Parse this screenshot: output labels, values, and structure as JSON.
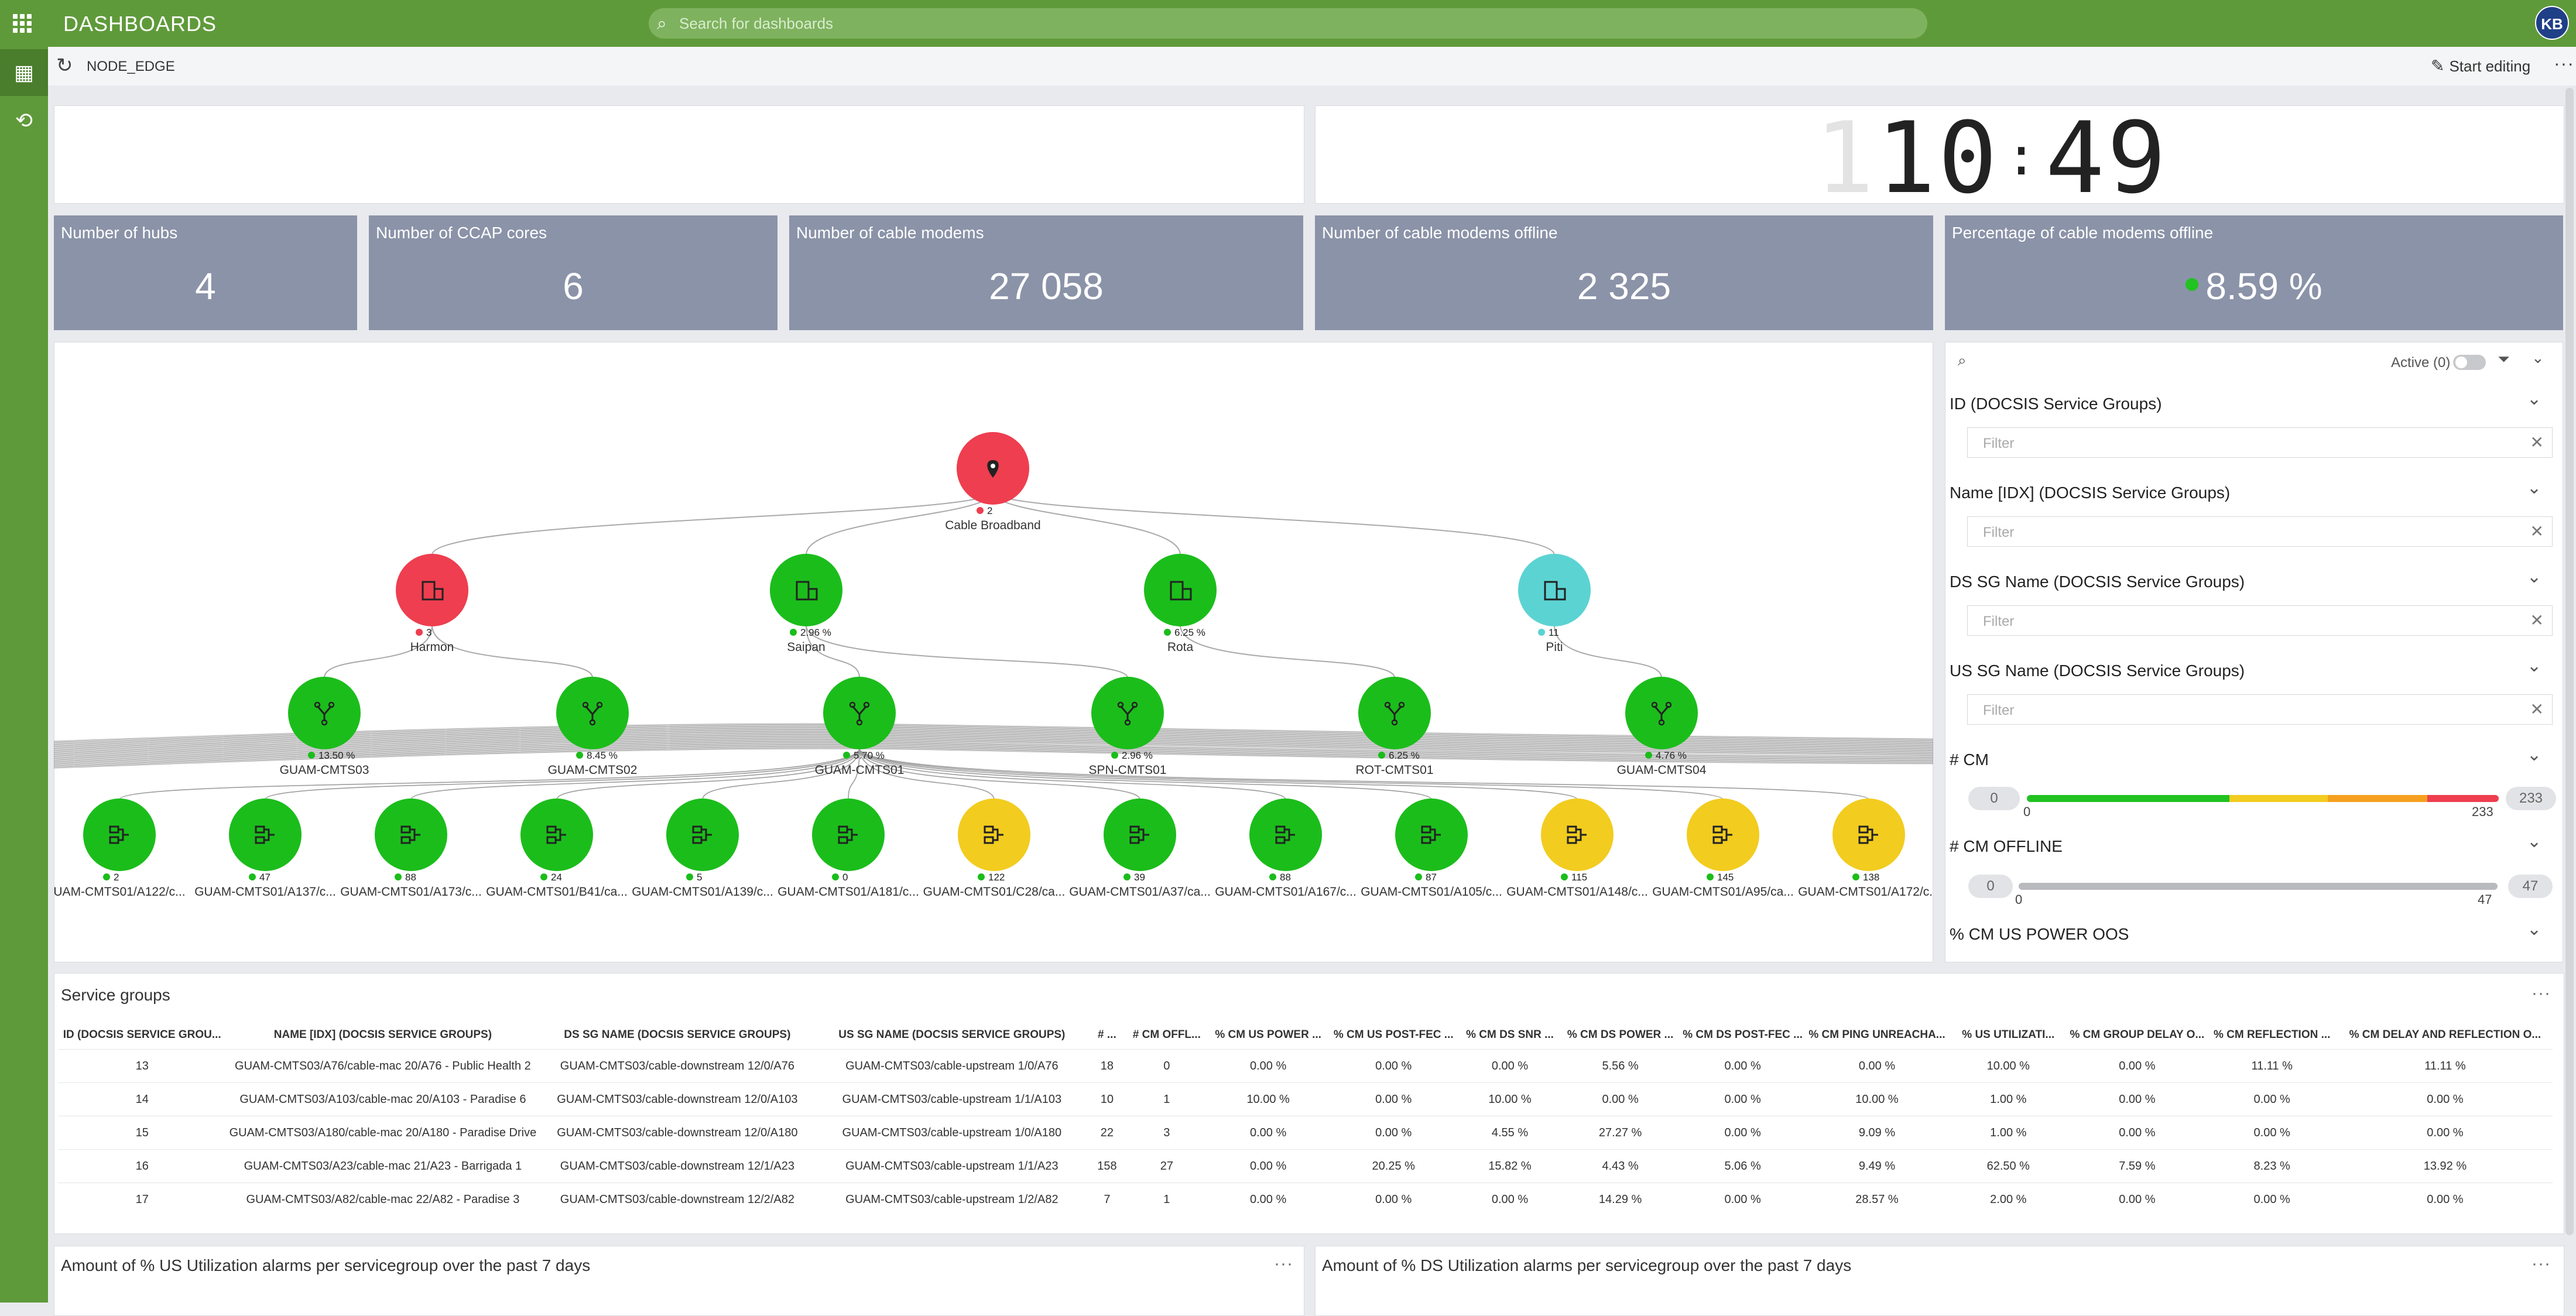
{
  "app": {
    "title": "DASHBOARDS",
    "search_placeholder": "Search for dashboards",
    "user_initials": "KB"
  },
  "breadcrumb": "NODE_EDGE",
  "toolbar": {
    "start_editing": "Start editing",
    "more": "···"
  },
  "clock": {
    "hours": "10",
    "separator": ":",
    "minutes": "49"
  },
  "kpis": [
    {
      "label": "Number of hubs",
      "value": "4"
    },
    {
      "label": "Number of CCAP cores",
      "value": "6"
    },
    {
      "label": "Number of cable modems",
      "value": "27 058"
    },
    {
      "label": "Number of cable modems offline",
      "value": "2 325"
    },
    {
      "label": "Percentage of cable modems offline",
      "value": "8.59 %"
    }
  ],
  "topology": {
    "root": {
      "label": "Cable Broadband",
      "count": "2",
      "color": "#ee3e4f",
      "icon": "location-pin-icon"
    },
    "hubs": [
      {
        "label": "Harmon",
        "stat": "3",
        "color": "#ee3e4f",
        "dot": "#ee3e4f"
      },
      {
        "label": "Saipan",
        "stat": "2.96 %",
        "color": "#1bbd1b",
        "dot": "#1bbd1b"
      },
      {
        "label": "Rota",
        "stat": "6.25 %",
        "color": "#1bbd1b",
        "dot": "#1bbd1b"
      },
      {
        "label": "Piti",
        "stat": "11",
        "color": "#5cd3d3",
        "dot": "#5cd3d3"
      }
    ],
    "ccaps": [
      {
        "label": "GUAM-CMTS03",
        "stat": "13.50 %"
      },
      {
        "label": "GUAM-CMTS02",
        "stat": "8.45 %"
      },
      {
        "label": "GUAM-CMTS01",
        "stat": "5.70 %"
      },
      {
        "label": "SPN-CMTS01",
        "stat": "2.96 %"
      },
      {
        "label": "ROT-CMTS01",
        "stat": "6.25 %"
      },
      {
        "label": "GUAM-CMTS04",
        "stat": "4.76 %"
      }
    ],
    "groups": [
      {
        "label": "UAM-CMTS01/A122/c...",
        "stat": "2",
        "color": "#1bbd1b"
      },
      {
        "label": "GUAM-CMTS01/A137/c...",
        "stat": "47",
        "color": "#1bbd1b"
      },
      {
        "label": "GUAM-CMTS01/A173/c...",
        "stat": "88",
        "color": "#1bbd1b"
      },
      {
        "label": "GUAM-CMTS01/B41/ca...",
        "stat": "24",
        "color": "#1bbd1b"
      },
      {
        "label": "GUAM-CMTS01/A139/c...",
        "stat": "5",
        "color": "#1bbd1b"
      },
      {
        "label": "GUAM-CMTS01/A181/c...",
        "stat": "0",
        "color": "#1bbd1b"
      },
      {
        "label": "GUAM-CMTS01/C28/ca...",
        "stat": "122",
        "color": "#f2cc1f"
      },
      {
        "label": "GUAM-CMTS01/A37/ca...",
        "stat": "39",
        "color": "#1bbd1b"
      },
      {
        "label": "GUAM-CMTS01/A167/c...",
        "stat": "88",
        "color": "#1bbd1b"
      },
      {
        "label": "GUAM-CMTS01/A105/c...",
        "stat": "87",
        "color": "#1bbd1b"
      },
      {
        "label": "GUAM-CMTS01/A148/c...",
        "stat": "115",
        "color": "#f2cc1f"
      },
      {
        "label": "GUAM-CMTS01/A95/ca...",
        "stat": "145",
        "color": "#f2cc1f"
      },
      {
        "label": "GUAM-CMTS01/A172/c...",
        "stat": "138",
        "color": "#f2cc1f"
      }
    ]
  },
  "filters": {
    "active_label": "Active (0)",
    "placeholder": "Filter",
    "sections": [
      {
        "title": "ID (DOCSIS Service Groups)"
      },
      {
        "title": "Name [IDX] (DOCSIS Service Groups)"
      },
      {
        "title": "DS SG Name (DOCSIS Service Groups)"
      },
      {
        "title": "US SG Name (DOCSIS Service Groups)"
      }
    ],
    "cm": {
      "title": "# CM",
      "min": "0",
      "max": "233",
      "min_label": "0",
      "max_label": "233"
    },
    "cm_offline": {
      "title": "# CM OFFLINE",
      "min": "0",
      "max": "47",
      "min_label": "0",
      "max_label": "47"
    },
    "power_oos": {
      "title": "% CM US POWER OOS"
    }
  },
  "service_groups": {
    "title": "Service groups",
    "columns": [
      "ID (DOCSIS SERVICE GROU...",
      "NAME [IDX] (DOCSIS SERVICE GROUPS)",
      "DS SG NAME (DOCSIS SERVICE GROUPS)",
      "US SG NAME (DOCSIS SERVICE GROUPS)",
      "# ...",
      "# CM OFFL...",
      "% CM US POWER ...",
      "% CM US POST-FEC ...",
      "% CM DS SNR ...",
      "% CM DS POWER ...",
      "% CM DS POST-FEC ...",
      "% CM PING UNREACHA...",
      "% US UTILIZATI...",
      "% CM GROUP DELAY O...",
      "% CM REFLECTION ...",
      "% CM DELAY AND REFLECTION O..."
    ],
    "rows": [
      [
        "13",
        "GUAM-CMTS03/A76/cable-mac 20/A76 - Public Health 2",
        "GUAM-CMTS03/cable-downstream 12/0/A76",
        "GUAM-CMTS03/cable-upstream 1/0/A76",
        "18",
        "0",
        "0.00 %",
        "0.00 %",
        "0.00 %",
        "5.56 %",
        "0.00 %",
        "0.00 %",
        "10.00 %",
        "0.00 %",
        "11.11 %",
        "11.11 %"
      ],
      [
        "14",
        "GUAM-CMTS03/A103/cable-mac 20/A103 - Paradise 6",
        "GUAM-CMTS03/cable-downstream 12/0/A103",
        "GUAM-CMTS03/cable-upstream 1/1/A103",
        "10",
        "1",
        "10.00 %",
        "0.00 %",
        "10.00 %",
        "0.00 %",
        "0.00 %",
        "10.00 %",
        "1.00 %",
        "0.00 %",
        "0.00 %",
        "0.00 %"
      ],
      [
        "15",
        "GUAM-CMTS03/A180/cable-mac 20/A180 - Paradise Drive",
        "GUAM-CMTS03/cable-downstream 12/0/A180",
        "GUAM-CMTS03/cable-upstream 1/0/A180",
        "22",
        "3",
        "0.00 %",
        "0.00 %",
        "4.55 %",
        "27.27 %",
        "0.00 %",
        "9.09 %",
        "1.00 %",
        "0.00 %",
        "0.00 %",
        "0.00 %"
      ],
      [
        "16",
        "GUAM-CMTS03/A23/cable-mac 21/A23 - Barrigada 1",
        "GUAM-CMTS03/cable-downstream 12/1/A23",
        "GUAM-CMTS03/cable-upstream 1/1/A23",
        "158",
        "27",
        "0.00 %",
        "20.25 %",
        "15.82 %",
        "4.43 %",
        "5.06 %",
        "9.49 %",
        "62.50 %",
        "7.59 %",
        "8.23 %",
        "13.92 %"
      ],
      [
        "17",
        "GUAM-CMTS03/A82/cable-mac 22/A82 - Paradise 3",
        "GUAM-CMTS03/cable-downstream 12/2/A82",
        "GUAM-CMTS03/cable-upstream 1/2/A82",
        "7",
        "1",
        "0.00 %",
        "0.00 %",
        "0.00 %",
        "14.29 %",
        "0.00 %",
        "28.57 %",
        "2.00 %",
        "0.00 %",
        "0.00 %",
        "0.00 %"
      ]
    ]
  },
  "bottom_panels": [
    {
      "title": "Amount of % US Utilization alarms per servicegroup over the past 7 days"
    },
    {
      "title": "Amount of % DS Utilization alarms per servicegroup over the past 7 days"
    }
  ],
  "colors": {
    "brand_green": "#5f9a3a",
    "kpi_bg": "#8b93a8",
    "critical": "#ee3e4f",
    "ok": "#1bbd1b",
    "warning": "#f2cc1f",
    "info": "#5cd3d3"
  }
}
